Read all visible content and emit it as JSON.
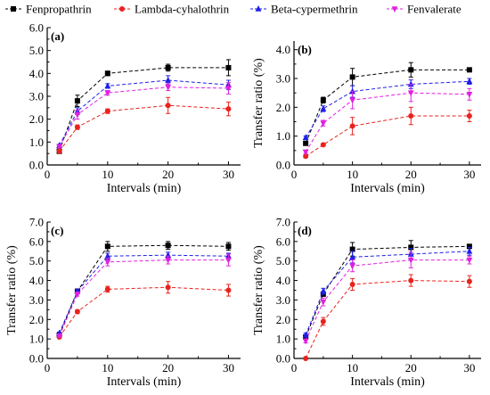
{
  "chart_data": {
    "type": "line",
    "legend": {
      "placement": "top",
      "entries": [
        "Fenpropathrin",
        "Lambda-cyhalothrin",
        "Beta-cypermethrin",
        "Fenvalerate"
      ]
    },
    "colors": {
      "Fenpropathrin": "#000000",
      "Lambda-cyhalothrin": "#e8231f",
      "Beta-cypermethrin": "#1f1fe8",
      "Fenvalerate": "#e020e0"
    },
    "markers": {
      "Fenpropathrin": "square",
      "Lambda-cyhalothrin": "circle",
      "Beta-cypermethrin": "triangle-up",
      "Fenvalerate": "triangle-down"
    },
    "panels": [
      {
        "label": "(a)",
        "xlabel": "Intervals (min)",
        "ylabel": "",
        "x": [
          2,
          5,
          10,
          20,
          30
        ],
        "xticks": [
          0,
          10,
          20,
          30
        ],
        "xlim": [
          0,
          32
        ],
        "yticks": [
          "0.0",
          "1.0",
          "2.0",
          "3.0",
          "4.0",
          "5.0",
          "6.0"
        ],
        "ylim": [
          0,
          6
        ],
        "series": [
          {
            "name": "Fenpropathrin",
            "values": [
              0.6,
              2.8,
              4.0,
              4.25,
              4.25
            ],
            "errors": [
              0.1,
              0.25,
              0.1,
              0.15,
              0.35
            ]
          },
          {
            "name": "Lambda-cyhalothrin",
            "values": [
              0.6,
              1.65,
              2.35,
              2.6,
              2.45
            ],
            "errors": [
              0.05,
              0.1,
              0.1,
              0.35,
              0.3
            ]
          },
          {
            "name": "Beta-cypermethrin",
            "values": [
              0.85,
              2.35,
              3.45,
              3.7,
              3.5
            ],
            "errors": [
              0.05,
              0.15,
              0.1,
              0.2,
              0.2
            ]
          },
          {
            "name": "Fenvalerate",
            "values": [
              0.8,
              2.2,
              3.15,
              3.4,
              3.35
            ],
            "errors": [
              0.05,
              0.2,
              0.1,
              0.15,
              0.25
            ]
          }
        ]
      },
      {
        "label": "(b)",
        "xlabel": "Intervals (min)",
        "ylabel": "Transfer ratio (%)",
        "x": [
          2,
          5,
          10,
          20,
          30
        ],
        "xticks": [
          0,
          10,
          20,
          30
        ],
        "xlim": [
          0,
          32
        ],
        "yticks": [
          "0.0",
          "1.0",
          "2.0",
          "3.0",
          "4.0"
        ],
        "ylim": [
          0,
          4.3
        ],
        "series": [
          {
            "name": "Fenpropathrin",
            "values": [
              0.75,
              2.25,
              3.05,
              3.3,
              3.3
            ],
            "errors": [
              0.05,
              0.1,
              0.3,
              0.25,
              0.05
            ]
          },
          {
            "name": "Lambda-cyhalothrin",
            "values": [
              0.3,
              0.7,
              1.35,
              1.7,
              1.7
            ],
            "errors": [
              0.05,
              0.05,
              0.3,
              0.3,
              0.2
            ]
          },
          {
            "name": "Beta-cypermethrin",
            "values": [
              0.95,
              1.95,
              2.55,
              2.8,
              2.9
            ],
            "errors": [
              0.05,
              0.1,
              0.2,
              0.15,
              0.1
            ]
          },
          {
            "name": "Fenvalerate",
            "values": [
              0.45,
              1.45,
              2.25,
              2.5,
              2.45
            ],
            "errors": [
              0.05,
              0.1,
              0.3,
              0.3,
              0.2
            ]
          }
        ]
      },
      {
        "label": "(c)",
        "xlabel": "Intervals (min)",
        "ylabel": "Transfer ratio (%)",
        "x": [
          2,
          5,
          10,
          20,
          30
        ],
        "xticks": [
          0,
          10,
          20,
          30
        ],
        "xlim": [
          0,
          32
        ],
        "yticks": [
          "0.0",
          "1.0",
          "2.0",
          "3.0",
          "4.0",
          "5.0",
          "6.0",
          "7.0"
        ],
        "ylim": [
          0,
          7
        ],
        "series": [
          {
            "name": "Fenpropathrin",
            "values": [
              1.2,
              3.45,
              5.75,
              5.8,
              5.75
            ],
            "errors": [
              0.05,
              0.1,
              0.25,
              0.2,
              0.2
            ]
          },
          {
            "name": "Lambda-cyhalothrin",
            "values": [
              1.1,
              2.4,
              3.55,
              3.65,
              3.5
            ],
            "errors": [
              0.05,
              0.1,
              0.15,
              0.3,
              0.3
            ]
          },
          {
            "name": "Beta-cypermethrin",
            "values": [
              1.3,
              3.45,
              5.25,
              5.3,
              5.25
            ],
            "errors": [
              0.05,
              0.1,
              0.15,
              0.15,
              0.15
            ]
          },
          {
            "name": "Fenvalerate",
            "values": [
              1.15,
              3.3,
              4.95,
              5.05,
              5.05
            ],
            "errors": [
              0.05,
              0.1,
              0.2,
              0.2,
              0.3
            ]
          }
        ]
      },
      {
        "label": "(d)",
        "xlabel": "Intervals (min)",
        "ylabel": "Transfer ratio (%)",
        "x": [
          2,
          5,
          10,
          20,
          30
        ],
        "xticks": [
          0,
          10,
          20,
          30
        ],
        "xlim": [
          0,
          32
        ],
        "yticks": [
          "0.0",
          "1.0",
          "2.0",
          "3.0",
          "4.0",
          "5.0",
          "6.0",
          "7.0"
        ],
        "ylim": [
          0,
          7
        ],
        "series": [
          {
            "name": "Fenpropathrin",
            "values": [
              1.1,
              3.3,
              5.6,
              5.7,
              5.75
            ],
            "errors": [
              0.1,
              0.1,
              0.35,
              0.35,
              0.1
            ]
          },
          {
            "name": "Lambda-cyhalothrin",
            "values": [
              0.0,
              1.9,
              3.8,
              4.0,
              3.95
            ],
            "errors": [
              0.05,
              0.2,
              0.3,
              0.3,
              0.3
            ]
          },
          {
            "name": "Beta-cypermethrin",
            "values": [
              1.2,
              3.45,
              5.2,
              5.35,
              5.5
            ],
            "errors": [
              0.1,
              0.15,
              0.3,
              0.3,
              0.2
            ]
          },
          {
            "name": "Fenvalerate",
            "values": [
              0.9,
              2.9,
              4.75,
              5.05,
              5.05
            ],
            "errors": [
              0.1,
              0.2,
              0.3,
              0.4,
              0.2
            ]
          }
        ]
      }
    ]
  }
}
